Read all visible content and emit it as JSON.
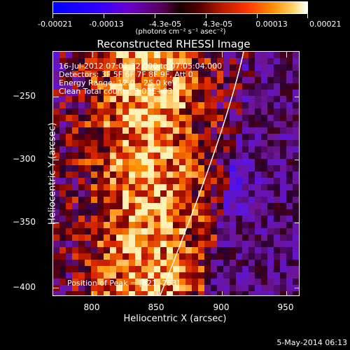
{
  "colorbar": {
    "tick_labels": [
      "-0.00021",
      "-0.00013",
      "-4.3e-05",
      "4.3e-05",
      "0.00013",
      "0.00021"
    ],
    "unit_label": "(photons cm⁻² s⁻¹ asec⁻²)",
    "colors": [
      "#0000ff",
      "#6a00cc",
      "#1a0000",
      "#b31a00",
      "#ff8800",
      "#ffffff"
    ]
  },
  "title": "Reconstructed RHESSI Image",
  "info_lines": [
    "16-Jul-2012 07:01:32.000 to 07:05:04.000",
    "Detectors: 3F 5F 6F 7F 8F 9F, Att 0",
    "Energy Range: 12.0 – 25.0 keV",
    "Clean    Total counts: 3.03E+03"
  ],
  "peak_label": "Position of Peak = [821,-253]",
  "axes": {
    "xlabel": "Heliocentric X (arcsec)",
    "ylabel": "Heliocentric Y (arcsec)",
    "xticks": [
      "800",
      "850",
      "900",
      "950"
    ],
    "yticks": [
      "−250",
      "−300",
      "−350",
      "−400"
    ],
    "xlim": [
      767,
      960
    ],
    "ylim": [
      -411,
      -220
    ]
  },
  "footer_date": "5-May-2014 06:13",
  "limb_color": "#ffffff"
}
